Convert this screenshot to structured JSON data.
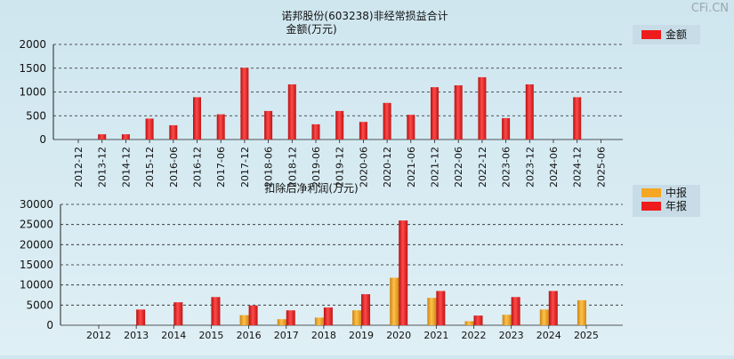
{
  "watermark": "CFi.CN",
  "colors": {
    "annual": "#ee1c1c",
    "interim": "#f5a623",
    "legend_bg": "#c7dce6",
    "grid": "#222222"
  },
  "chart_data": [
    {
      "type": "bar",
      "title": "诺邦股份(603238)非经常损益合计",
      "subtitle": "金额(万元)",
      "legend": [
        "金额"
      ],
      "legend_position": "top-right",
      "grid": true,
      "ylim": [
        0,
        2000
      ],
      "yticks": [
        "0",
        "500",
        "1000",
        "1500",
        "2000"
      ],
      "categories": [
        "2012-12",
        "2013-12",
        "2014-12",
        "2015-12",
        "2016-06",
        "2016-12",
        "2017-06",
        "2017-12",
        "2018-06",
        "2018-12",
        "2019-06",
        "2019-12",
        "2020-06",
        "2020-12",
        "2021-06",
        "2021-12",
        "2022-06",
        "2022-12",
        "2023-06",
        "2023-12",
        "2024-06",
        "2024-12",
        "2025-06"
      ],
      "series": [
        {
          "name": "金额",
          "values": [
            0,
            110,
            110,
            440,
            300,
            890,
            530,
            1510,
            600,
            1160,
            320,
            600,
            370,
            770,
            520,
            1100,
            1140,
            1310,
            450,
            1160,
            0,
            890,
            0
          ]
        }
      ]
    },
    {
      "type": "bar",
      "title": "扣除后净利润(万元)",
      "legend": [
        "中报",
        "年报"
      ],
      "legend_position": "top-right",
      "grid": true,
      "ylim": [
        0,
        30000
      ],
      "yticks": [
        "0",
        "5000",
        "10000",
        "15000",
        "20000",
        "25000",
        "30000"
      ],
      "categories": [
        "2012",
        "2013",
        "2014",
        "2015",
        "2016",
        "2017",
        "2018",
        "2019",
        "2020",
        "2021",
        "2022",
        "2023",
        "2024",
        "2025"
      ],
      "series": [
        {
          "name": "中报",
          "values": [
            null,
            null,
            null,
            null,
            2500,
            1500,
            1900,
            3700,
            11800,
            6800,
            1000,
            2600,
            3900,
            6200
          ]
        },
        {
          "name": "年报",
          "values": [
            null,
            3900,
            5700,
            7000,
            4900,
            3700,
            4400,
            7700,
            26000,
            8500,
            2400,
            7000,
            8500,
            null
          ]
        }
      ]
    }
  ]
}
